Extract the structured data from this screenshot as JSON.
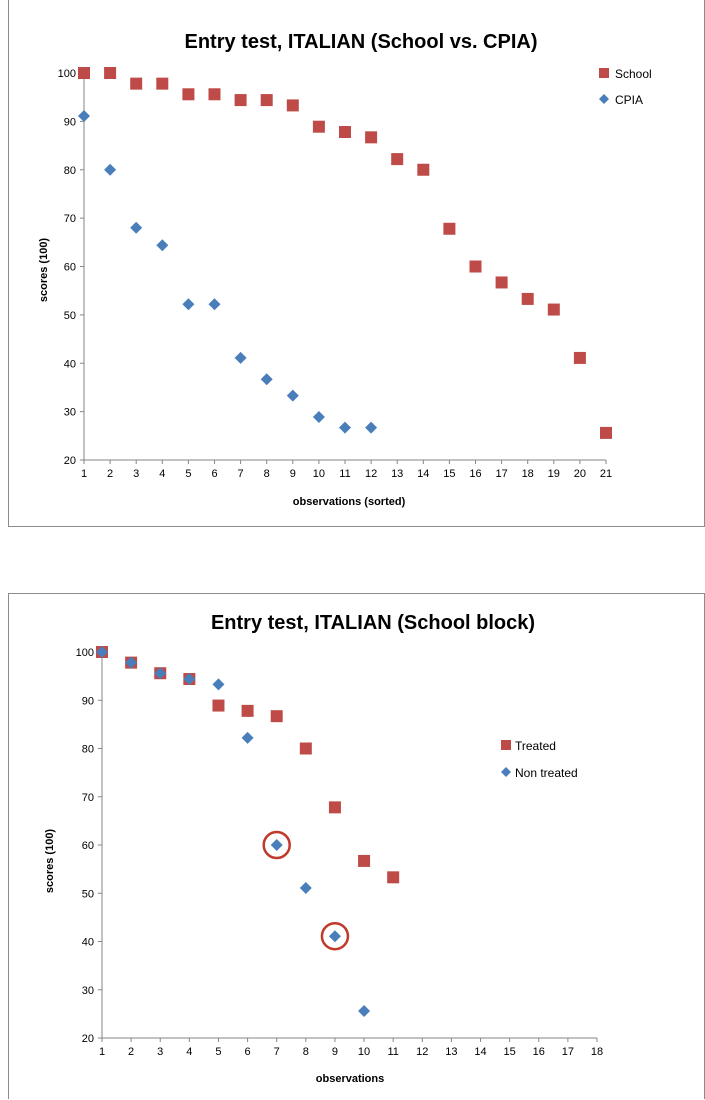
{
  "colors": {
    "school": "#be4b48",
    "cpia": "#4a7ebb",
    "axis": "#868686",
    "circle": "#c0392b"
  },
  "chart_data": [
    {
      "type": "scatter",
      "title": "Entry test, ITALIAN (School vs. CPIA)",
      "xlabel": "observations (sorted)",
      "ylabel": "scores (100)",
      "xlim": [
        1,
        21
      ],
      "ylim": [
        20,
        100
      ],
      "x_ticks": [
        "1",
        "2",
        "3",
        "4",
        "5",
        "6",
        "7",
        "8",
        "9",
        "10",
        "11",
        "12",
        "13",
        "14",
        "15",
        "16",
        "17",
        "18",
        "19",
        "20",
        "21"
      ],
      "y_ticks": [
        "20",
        "30",
        "40",
        "50",
        "60",
        "70",
        "80",
        "90",
        "100"
      ],
      "legend_position": "top-right",
      "series": [
        {
          "name": "School",
          "marker": "square",
          "x": [
            1,
            2,
            3,
            4,
            5,
            6,
            7,
            8,
            9,
            10,
            11,
            12,
            13,
            14,
            15,
            16,
            17,
            18,
            19,
            20,
            21
          ],
          "y": [
            100,
            100,
            97.8,
            97.8,
            95.6,
            95.6,
            94.4,
            94.4,
            93.3,
            88.9,
            87.8,
            86.7,
            82.2,
            80,
            67.8,
            60,
            56.7,
            53.3,
            51.1,
            41.1,
            25.6
          ]
        },
        {
          "name": "CPIA",
          "marker": "diamond",
          "x": [
            1,
            2,
            3,
            4,
            5,
            6,
            7,
            8,
            9,
            10,
            11,
            12
          ],
          "y": [
            91.1,
            80,
            68,
            64.4,
            52.2,
            52.2,
            41.1,
            36.7,
            33.3,
            28.9,
            26.7,
            26.7
          ]
        }
      ]
    },
    {
      "type": "scatter",
      "title": "Entry test, ITALIAN (School block)",
      "xlabel": "observations",
      "ylabel": "scores (100)",
      "xlim": [
        1,
        18
      ],
      "ylim": [
        20,
        100
      ],
      "x_ticks": [
        "1",
        "2",
        "3",
        "4",
        "5",
        "6",
        "7",
        "8",
        "9",
        "10",
        "11",
        "12",
        "13",
        "14",
        "15",
        "16",
        "17",
        "18"
      ],
      "y_ticks": [
        "20",
        "30",
        "40",
        "50",
        "60",
        "70",
        "80",
        "90",
        "100"
      ],
      "legend_position": "right",
      "series": [
        {
          "name": "Treated",
          "marker": "square",
          "x": [
            1,
            2,
            3,
            4,
            5,
            6,
            7,
            8,
            9,
            10,
            11
          ],
          "y": [
            100,
            97.8,
            95.6,
            94.4,
            88.9,
            87.8,
            86.7,
            80,
            67.8,
            56.7,
            53.3
          ]
        },
        {
          "name": "Non treated",
          "marker": "diamond",
          "x": [
            1,
            2,
            3,
            4,
            5,
            6,
            7,
            8,
            9,
            10
          ],
          "y": [
            100,
            97.8,
            95.6,
            94.4,
            93.3,
            82.2,
            60,
            51.1,
            41.1,
            25.6
          ]
        }
      ],
      "highlighted_points": [
        {
          "x": 7,
          "y": 60
        },
        {
          "x": 9,
          "y": 41.1
        }
      ]
    }
  ]
}
